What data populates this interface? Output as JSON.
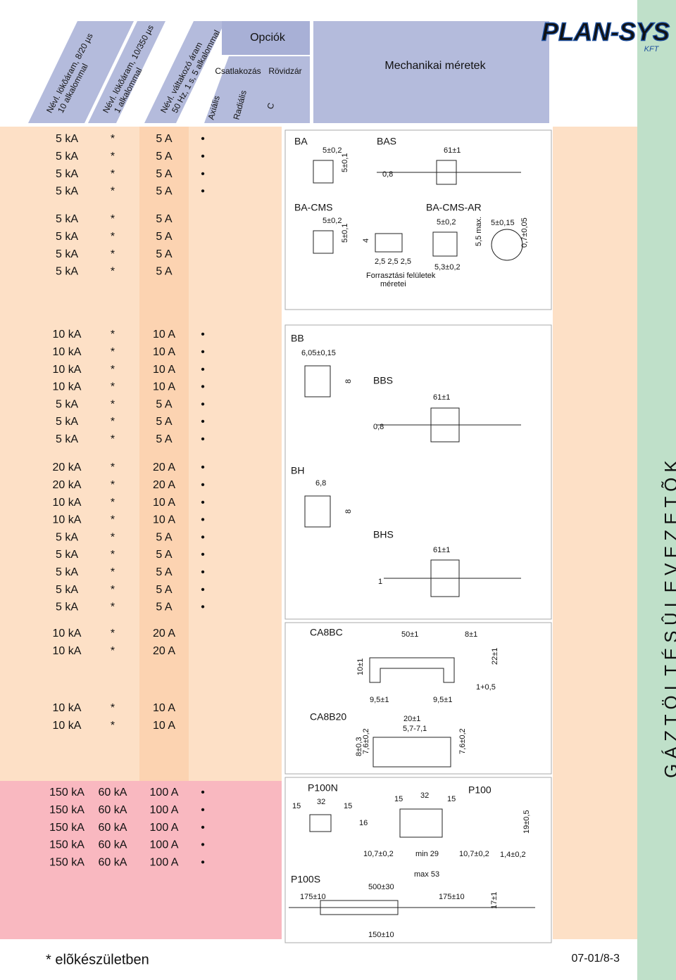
{
  "header": {
    "columns": [
      [
        "Névl. lökõáram, 8/20 µs",
        "10 alkalommal"
      ],
      [
        "Névl. lökõáram, 10/350 µs",
        "1 alkalommal"
      ],
      [
        "Névl. váltakozó áram",
        "50 Hz, 1 s, 5 alkalommal"
      ]
    ],
    "options": "Opciók",
    "connection": "Csatlakozás",
    "short": "Rövidzár",
    "axial": "Axiális",
    "radial": "Radiális",
    "c": "C",
    "mechanical": "Mechanikai méretek",
    "logo": "PLAN-SYS",
    "logo_sub": "KFT"
  },
  "side_title": "G Á Z T Ö L T É S Û   L E V E Z E T Õ K",
  "groups": [
    {
      "rows": [
        [
          "5 kA",
          "*",
          "5 A",
          "•"
        ],
        [
          "5 kA",
          "*",
          "5 A",
          "•"
        ],
        [
          "5 kA",
          "*",
          "5 A",
          "•"
        ],
        [
          "5 kA",
          "*",
          "5 A",
          "•"
        ]
      ]
    },
    {
      "rows": [
        [
          "5 kA",
          "*",
          "5 A"
        ],
        [
          "5 kA",
          "*",
          "5 A"
        ],
        [
          "5 kA",
          "*",
          "5 A"
        ],
        [
          "5 kA",
          "*",
          "5 A"
        ]
      ]
    },
    {
      "rows": [
        [
          "10 kA",
          "*",
          "10 A",
          "•"
        ],
        [
          "10 kA",
          "*",
          "10 A",
          "•"
        ],
        [
          "10 kA",
          "*",
          "10 A",
          "•"
        ],
        [
          "10 kA",
          "*",
          "10 A",
          "•"
        ],
        [
          "5 kA",
          "*",
          "5 A",
          "•"
        ],
        [
          "5 kA",
          "*",
          "5 A",
          "•"
        ],
        [
          "5 kA",
          "*",
          "5 A",
          "•"
        ]
      ]
    },
    {
      "rows": [
        [
          "20 kA",
          "*",
          "20 A",
          "•"
        ],
        [
          "20 kA",
          "*",
          "20 A",
          "•"
        ],
        [
          "10 kA",
          "*",
          "10 A",
          "•"
        ],
        [
          "10 kA",
          "*",
          "10 A",
          "•"
        ],
        [
          "5 kA",
          "*",
          "5 A",
          "•"
        ],
        [
          "5 kA",
          "*",
          "5 A",
          "•"
        ],
        [
          "5 kA",
          "*",
          "5 A",
          "•"
        ],
        [
          "5 kA",
          "*",
          "5 A",
          "•"
        ],
        [
          "5 kA",
          "*",
          "5 A",
          "•"
        ]
      ]
    },
    {
      "rows": [
        [
          "10 kA",
          "*",
          "20 A"
        ],
        [
          "10 kA",
          "*",
          "20 A"
        ]
      ]
    },
    {
      "rows": [
        [
          "10 kA",
          "*",
          "10 A"
        ],
        [
          "10 kA",
          "*",
          "10 A"
        ]
      ]
    },
    {
      "rows": [
        [
          "150 kA",
          "60 kA",
          "100 A",
          "•"
        ],
        [
          "150 kA",
          "60 kA",
          "100 A",
          "•"
        ],
        [
          "150 kA",
          "60 kA",
          "100 A",
          "•"
        ],
        [
          "150 kA",
          "60 kA",
          "100 A",
          "•"
        ],
        [
          "150 kA",
          "60 kA",
          "100 A",
          "•"
        ]
      ]
    }
  ],
  "drawings": {
    "p1": [
      "BA",
      "5±0,2",
      "5±0,1",
      "BAS",
      "61±1",
      "0,8",
      "BA-CMS",
      "5±0,2",
      "5±0,1",
      "4",
      "2,5 2,5 2,5",
      "Forrasztási felületek",
      "méretei",
      "BA-CMS-AR",
      "5±0,2",
      "5,3±0,2",
      "5,5 max.",
      "5±0,15",
      "0,7±0,05"
    ],
    "p2": [
      "BB",
      "6,05±0,15",
      "8",
      "BBS",
      "61±1",
      "0,8"
    ],
    "p3": [
      "BH",
      "6,8",
      "8",
      "BHS",
      "61±1",
      "1"
    ],
    "p4": [
      "CA8BC",
      "50±1",
      "8±1",
      "10±1",
      "22±1",
      "9,5±1",
      "9,5±1",
      "1+0,5",
      "CA8B20",
      "20±1",
      "5,7-7,1",
      "8±0,3",
      "7,6±0,2",
      "7,6±0,2"
    ],
    "p5": [
      "P100N",
      "15",
      "32",
      "15",
      "16",
      "15",
      "32",
      "15",
      "P100",
      "10,7±0,2",
      "min 29",
      "10,7±0,2",
      "1,4±0,2",
      "19±0,5",
      "max 53",
      "P100S",
      "500±30",
      "175±10",
      "175±10",
      "17±1",
      "150±10"
    ]
  },
  "footer": {
    "note": "* elõkészületben",
    "code": "07-01/8-3"
  }
}
